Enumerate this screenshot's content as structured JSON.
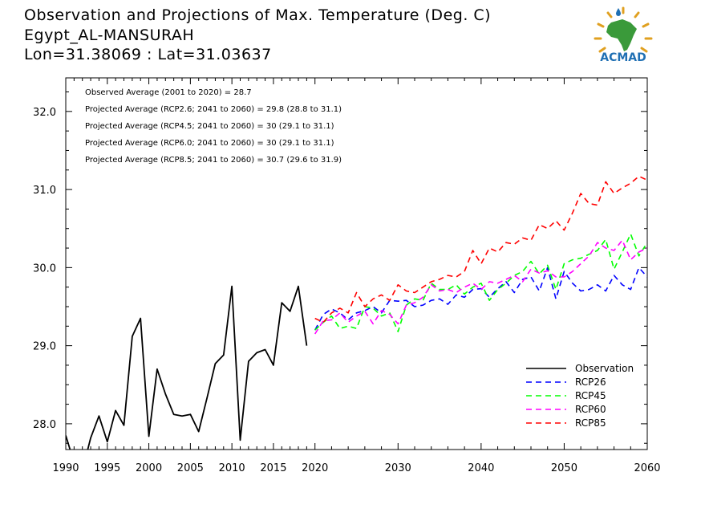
{
  "header": {
    "title_line1": "Observation and Projections of Max. Temperature (Deg. C)",
    "title_line2": "Egypt_AL-MANSURAH",
    "title_line3": "Lon=31.38069 : Lat=31.03637"
  },
  "logo": {
    "text": "ACMAD",
    "colors": {
      "africa": "#3a9a3a",
      "rays": "#e0a020",
      "drop": "#1f6fb3"
    }
  },
  "annotations": [
    "Observed Average (2001 to 2020) = 28.7",
    "Projected Average (RCP2.6; 2041 to 2060) = 29.8 (28.8 to 31.1)",
    "Projected Average (RCP4.5; 2041 to 2060) = 30 (29.1 to 31.1)",
    "Projected Average (RCP6.0; 2041 to 2060) = 30 (29.1 to 31.1)",
    "Projected Average (RCP8.5; 2041 to 2060) = 30.7 (29.6 to 31.9)"
  ],
  "chart_data": {
    "type": "line",
    "xlim": [
      1990,
      2060
    ],
    "ylim": [
      27.67,
      32.43
    ],
    "x_ticks": [
      "1990",
      "1995",
      "2000",
      "2005",
      "2010",
      "2015",
      "2020",
      "2030",
      "2040",
      "2050",
      "2060"
    ],
    "x_tick_values": [
      1990,
      1995,
      2000,
      2005,
      2010,
      2015,
      2020,
      2030,
      2040,
      2050,
      2060
    ],
    "y_ticks": [
      "28.0",
      "29.0",
      "30.0",
      "31.0",
      "32.0"
    ],
    "y_tick_values": [
      28,
      29,
      30,
      31,
      32
    ],
    "legend_position": "bottom-right",
    "series": [
      {
        "name": "Observation",
        "color": "#000000",
        "dashed": false,
        "points": [
          [
            1990,
            27.85
          ],
          [
            1991,
            27.5
          ],
          [
            1992,
            27.4
          ],
          [
            1993,
            27.82
          ],
          [
            1994,
            28.1
          ],
          [
            1995,
            27.77
          ],
          [
            1996,
            28.17
          ],
          [
            1997,
            27.98
          ],
          [
            1998,
            29.12
          ],
          [
            1999,
            29.35
          ],
          [
            2000,
            27.84
          ],
          [
            2001,
            28.7
          ],
          [
            2002,
            28.38
          ],
          [
            2003,
            28.12
          ],
          [
            2004,
            28.1
          ],
          [
            2005,
            28.12
          ],
          [
            2006,
            27.9
          ],
          [
            2007,
            28.33
          ],
          [
            2008,
            28.77
          ],
          [
            2009,
            28.88
          ],
          [
            2010,
            29.76
          ],
          [
            2011,
            27.79
          ],
          [
            2012,
            28.8
          ],
          [
            2013,
            28.91
          ],
          [
            2014,
            28.95
          ],
          [
            2015,
            28.75
          ],
          [
            2016,
            29.55
          ],
          [
            2017,
            29.44
          ],
          [
            2018,
            29.76
          ],
          [
            2019,
            29.0
          ]
        ]
      },
      {
        "name": "RCP26",
        "color": "#0000ff",
        "dashed": true,
        "points": [
          [
            2020,
            29.2
          ],
          [
            2021,
            29.4
          ],
          [
            2022,
            29.47
          ],
          [
            2023,
            29.42
          ],
          [
            2024,
            29.33
          ],
          [
            2025,
            29.42
          ],
          [
            2026,
            29.45
          ],
          [
            2027,
            29.5
          ],
          [
            2028,
            29.42
          ],
          [
            2029,
            29.58
          ],
          [
            2030,
            29.57
          ],
          [
            2031,
            29.58
          ],
          [
            2032,
            29.5
          ],
          [
            2033,
            29.52
          ],
          [
            2034,
            29.58
          ],
          [
            2035,
            29.6
          ],
          [
            2036,
            29.53
          ],
          [
            2037,
            29.65
          ],
          [
            2038,
            29.62
          ],
          [
            2039,
            29.72
          ],
          [
            2040,
            29.73
          ],
          [
            2041,
            29.62
          ],
          [
            2042,
            29.73
          ],
          [
            2043,
            29.82
          ],
          [
            2044,
            29.68
          ],
          [
            2045,
            29.85
          ],
          [
            2046,
            29.88
          ],
          [
            2047,
            29.7
          ],
          [
            2048,
            30.0
          ],
          [
            2049,
            29.6
          ],
          [
            2050,
            29.95
          ],
          [
            2051,
            29.8
          ],
          [
            2052,
            29.7
          ],
          [
            2053,
            29.72
          ],
          [
            2054,
            29.78
          ],
          [
            2055,
            29.7
          ],
          [
            2056,
            29.9
          ],
          [
            2057,
            29.78
          ],
          [
            2058,
            29.72
          ],
          [
            2059,
            30.0
          ],
          [
            2060,
            29.88
          ]
        ]
      },
      {
        "name": "RCP45",
        "color": "#00ff00",
        "dashed": true,
        "points": [
          [
            2020,
            29.2
          ],
          [
            2021,
            29.3
          ],
          [
            2022,
            29.38
          ],
          [
            2023,
            29.22
          ],
          [
            2024,
            29.25
          ],
          [
            2025,
            29.22
          ],
          [
            2026,
            29.5
          ],
          [
            2027,
            29.48
          ],
          [
            2028,
            29.38
          ],
          [
            2029,
            29.42
          ],
          [
            2030,
            29.18
          ],
          [
            2031,
            29.52
          ],
          [
            2032,
            29.6
          ],
          [
            2033,
            29.58
          ],
          [
            2034,
            29.8
          ],
          [
            2035,
            29.72
          ],
          [
            2036,
            29.72
          ],
          [
            2037,
            29.78
          ],
          [
            2038,
            29.66
          ],
          [
            2039,
            29.75
          ],
          [
            2040,
            29.8
          ],
          [
            2041,
            29.58
          ],
          [
            2042,
            29.72
          ],
          [
            2043,
            29.8
          ],
          [
            2044,
            29.9
          ],
          [
            2045,
            29.95
          ],
          [
            2046,
            30.08
          ],
          [
            2047,
            29.92
          ],
          [
            2048,
            30.03
          ],
          [
            2049,
            29.72
          ],
          [
            2050,
            30.05
          ],
          [
            2051,
            30.1
          ],
          [
            2052,
            30.12
          ],
          [
            2053,
            30.17
          ],
          [
            2054,
            30.22
          ],
          [
            2055,
            30.36
          ],
          [
            2056,
            29.98
          ],
          [
            2057,
            30.2
          ],
          [
            2058,
            30.43
          ],
          [
            2059,
            30.15
          ],
          [
            2060,
            30.32
          ]
        ]
      },
      {
        "name": "RCP60",
        "color": "#ff00ff",
        "dashed": true,
        "points": [
          [
            2020,
            29.15
          ],
          [
            2021,
            29.32
          ],
          [
            2022,
            29.33
          ],
          [
            2023,
            29.42
          ],
          [
            2024,
            29.3
          ],
          [
            2025,
            29.38
          ],
          [
            2026,
            29.44
          ],
          [
            2027,
            29.28
          ],
          [
            2028,
            29.45
          ],
          [
            2029,
            29.4
          ],
          [
            2030,
            29.28
          ],
          [
            2031,
            29.52
          ],
          [
            2032,
            29.55
          ],
          [
            2033,
            29.62
          ],
          [
            2034,
            29.78
          ],
          [
            2035,
            29.7
          ],
          [
            2036,
            29.72
          ],
          [
            2037,
            29.68
          ],
          [
            2038,
            29.75
          ],
          [
            2039,
            29.8
          ],
          [
            2040,
            29.72
          ],
          [
            2041,
            29.82
          ],
          [
            2042,
            29.8
          ],
          [
            2043,
            29.85
          ],
          [
            2044,
            29.9
          ],
          [
            2045,
            29.82
          ],
          [
            2046,
            29.98
          ],
          [
            2047,
            29.93
          ],
          [
            2048,
            29.96
          ],
          [
            2049,
            29.88
          ],
          [
            2050,
            29.88
          ],
          [
            2051,
            29.95
          ],
          [
            2052,
            30.05
          ],
          [
            2053,
            30.15
          ],
          [
            2054,
            30.32
          ],
          [
            2055,
            30.25
          ],
          [
            2056,
            30.22
          ],
          [
            2057,
            30.35
          ],
          [
            2058,
            30.1
          ],
          [
            2059,
            30.2
          ],
          [
            2060,
            30.25
          ]
        ]
      },
      {
        "name": "RCP85",
        "color": "#ff0000",
        "dashed": true,
        "points": [
          [
            2020,
            29.35
          ],
          [
            2021,
            29.3
          ],
          [
            2022,
            29.42
          ],
          [
            2023,
            29.48
          ],
          [
            2024,
            29.42
          ],
          [
            2025,
            29.68
          ],
          [
            2026,
            29.5
          ],
          [
            2027,
            29.6
          ],
          [
            2028,
            29.65
          ],
          [
            2029,
            29.58
          ],
          [
            2030,
            29.78
          ],
          [
            2031,
            29.7
          ],
          [
            2032,
            29.68
          ],
          [
            2033,
            29.75
          ],
          [
            2034,
            29.82
          ],
          [
            2035,
            29.85
          ],
          [
            2036,
            29.9
          ],
          [
            2037,
            29.88
          ],
          [
            2038,
            29.95
          ],
          [
            2039,
            30.22
          ],
          [
            2040,
            30.05
          ],
          [
            2041,
            30.25
          ],
          [
            2042,
            30.2
          ],
          [
            2043,
            30.32
          ],
          [
            2044,
            30.3
          ],
          [
            2045,
            30.38
          ],
          [
            2046,
            30.35
          ],
          [
            2047,
            30.55
          ],
          [
            2048,
            30.5
          ],
          [
            2049,
            30.6
          ],
          [
            2050,
            30.48
          ],
          [
            2051,
            30.7
          ],
          [
            2052,
            30.95
          ],
          [
            2053,
            30.82
          ],
          [
            2054,
            30.8
          ],
          [
            2055,
            31.1
          ],
          [
            2056,
            30.95
          ],
          [
            2057,
            31.02
          ],
          [
            2058,
            31.08
          ],
          [
            2059,
            31.17
          ],
          [
            2060,
            31.12
          ]
        ]
      }
    ]
  }
}
